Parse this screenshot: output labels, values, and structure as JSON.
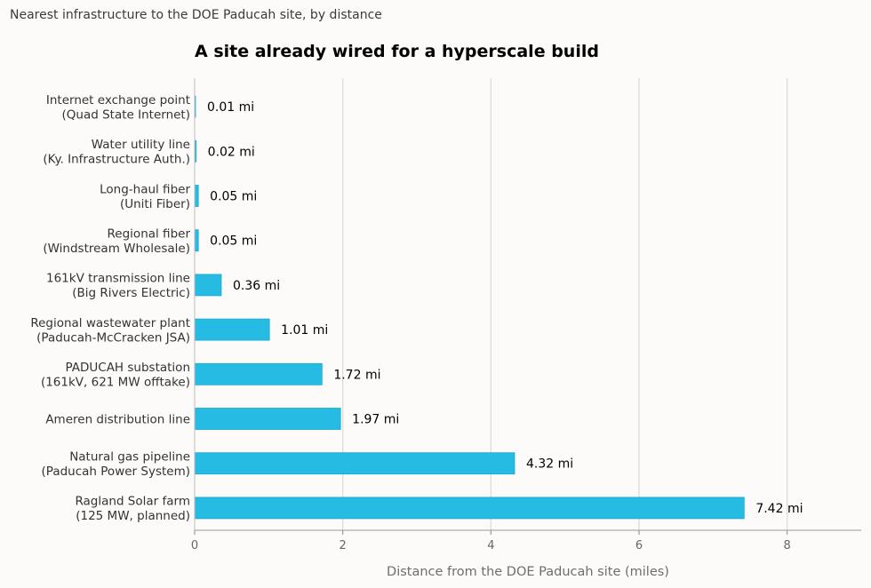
{
  "header": {
    "kicker": "Nearest infrastructure to the DOE Paducah site, by distance"
  },
  "chart_data": {
    "type": "bar",
    "orientation": "horizontal",
    "title": "A site already wired for a hyperscale build",
    "xlabel": "Distance from the DOE Paducah site (miles)",
    "ylabel": "",
    "xlim": [
      0,
      9
    ],
    "xticks": [
      0,
      2,
      4,
      6,
      8
    ],
    "grid": "x",
    "bar_color": "#26bbe3",
    "categories": [
      [
        "Internet exchange point",
        "(Quad State Internet)"
      ],
      [
        "Water utility line",
        "(Ky. Infrastructure Auth.)"
      ],
      [
        "Long-haul fiber",
        "(Uniti Fiber)"
      ],
      [
        "Regional fiber",
        "(Windstream Wholesale)"
      ],
      [
        "161kV transmission line",
        "(Big Rivers Electric)"
      ],
      [
        "Regional wastewater plant",
        "(Paducah-McCracken JSA)"
      ],
      [
        "PADUCAH substation",
        "(161kV, 621 MW offtake)"
      ],
      [
        "Ameren distribution line"
      ],
      [
        "Natural gas pipeline",
        "(Paducah Power System)"
      ],
      [
        "Ragland Solar farm",
        "(125 MW, planned)"
      ]
    ],
    "values": [
      0.01,
      0.02,
      0.05,
      0.05,
      0.36,
      1.01,
      1.72,
      1.97,
      4.32,
      7.42
    ],
    "data_labels": [
      "0.01 mi",
      "0.02 mi",
      "0.05 mi",
      "0.05 mi",
      "0.36 mi",
      "1.01 mi",
      "1.72 mi",
      "1.97 mi",
      "4.32 mi",
      "7.42 mi"
    ]
  }
}
